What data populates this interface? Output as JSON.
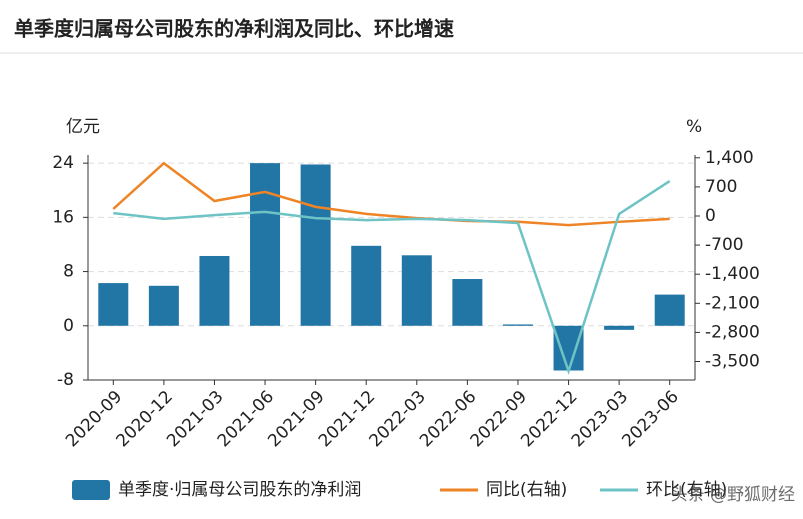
{
  "chart_data": {
    "type": "bar_line",
    "title": "单季度归属母公司股东的净利润及同比、环比增速",
    "y_unit": "亿元",
    "y2_unit": "%",
    "categories": [
      "2020-09",
      "2020-12",
      "2021-03",
      "2021-06",
      "2021-09",
      "2021-12",
      "2022-03",
      "2022-06",
      "2022-09",
      "2022-12",
      "2023-03",
      "2023-06"
    ],
    "series": [
      {
        "name": "单季度·归属母公司股东的净利润",
        "type": "bar",
        "color": "#2276a6",
        "values": [
          6.3,
          5.9,
          10.3,
          24.0,
          23.8,
          11.8,
          10.4,
          6.9,
          0.2,
          -6.6,
          -0.6,
          4.6
        ]
      },
      {
        "name": "同比(右轴)",
        "type": "line",
        "axis": "y2",
        "color": "#ee8426",
        "values": [
          170,
          1270,
          360,
          580,
          220,
          50,
          -50,
          -120,
          -140,
          -220,
          -140,
          -70
        ]
      },
      {
        "name": "环比(右轴)",
        "type": "line",
        "axis": "y2",
        "color": "#6ec3c5",
        "values": [
          70,
          -70,
          20,
          100,
          -50,
          -100,
          -70,
          -100,
          -170,
          -3730,
          50,
          840
        ]
      }
    ],
    "ylim": [
      -8,
      25.2
    ],
    "yticks": [
      24,
      16,
      8,
      0,
      -8
    ],
    "y2lim": [
      -3945,
      1467
    ],
    "y2ticks": [
      {
        "value": 1400,
        "label": "1,400"
      },
      700,
      0,
      -700,
      {
        "value": -1400,
        "label": "-1,400"
      },
      {
        "value": -2100,
        "label": "-2,100"
      },
      {
        "value": -2800,
        "label": "-2,800"
      },
      {
        "value": -3500,
        "label": "-3,500"
      }
    ],
    "grid": true,
    "legend": "bottom",
    "watermark": "头条 @野狐财经"
  }
}
